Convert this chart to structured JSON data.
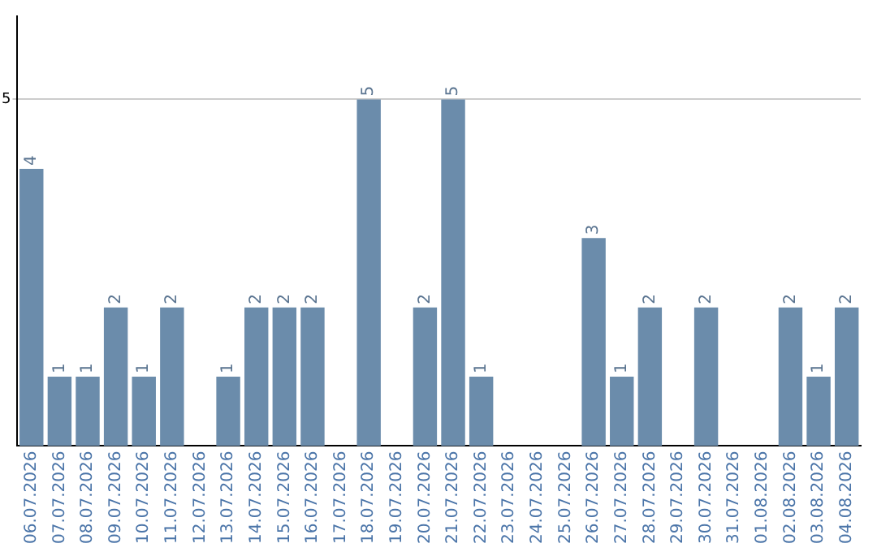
{
  "chart_data": {
    "type": "bar",
    "categories": [
      "06.07.2026",
      "07.07.2026",
      "08.07.2026",
      "09.07.2026",
      "10.07.2026",
      "11.07.2026",
      "12.07.2026",
      "13.07.2026",
      "14.07.2026",
      "15.07.2026",
      "16.07.2026",
      "17.07.2026",
      "18.07.2026",
      "19.07.2026",
      "20.07.2026",
      "21.07.2026",
      "22.07.2026",
      "23.07.2026",
      "24.07.2026",
      "25.07.2026",
      "26.07.2026",
      "27.07.2026",
      "28.07.2026",
      "29.07.2026",
      "30.07.2026",
      "31.07.2026",
      "01.08.2026",
      "02.08.2026",
      "03.08.2026",
      "04.08.2026"
    ],
    "values": [
      4,
      1,
      1,
      2,
      1,
      2,
      0,
      1,
      2,
      2,
      2,
      0,
      5,
      0,
      2,
      5,
      1,
      0,
      0,
      0,
      3,
      1,
      2,
      0,
      2,
      0,
      0,
      2,
      1,
      2
    ],
    "value_labels": [
      "4",
      "1",
      "1",
      "2",
      "1",
      "2",
      null,
      "1",
      "2",
      "2",
      "2",
      null,
      "5",
      null,
      "2",
      "5",
      "1",
      null,
      null,
      null,
      "3",
      "1",
      "2",
      null,
      "2",
      null,
      null,
      "2",
      "1",
      "2"
    ],
    "color": "#6b8cab",
    "ylim": [
      0,
      6.2
    ],
    "yticks": [
      5
    ],
    "grid": "y",
    "legend": false
  }
}
